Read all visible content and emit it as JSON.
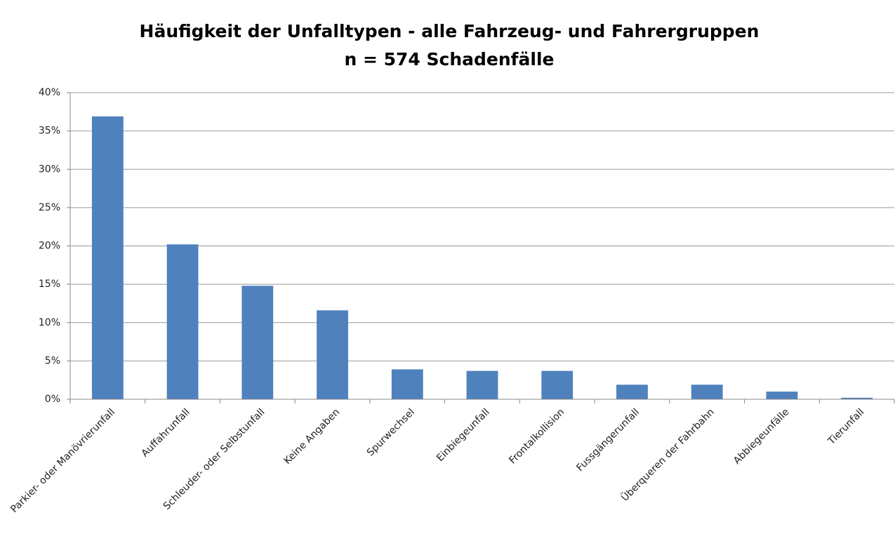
{
  "chart_data": {
    "type": "bar",
    "title": "Häufigkeit der Unfalltypen - alle Fahrzeug- und Fahrergruppen",
    "subtitle": "n = 574 Schadenfälle",
    "categories": [
      "Parkier- oder Manövrierunfall",
      "Auffahrunfall",
      "Schleuder- oder Selbstunfall",
      "Keine Angaben",
      "Spurwechsel",
      "Einbiegeunfall",
      "Frontalkollision",
      "Fussgängerunfall",
      "Überqueren der Fahrbahn",
      "Abbiegeunfälle",
      "Tierunfall"
    ],
    "values": [
      36.9,
      20.2,
      14.8,
      11.6,
      3.9,
      3.7,
      3.7,
      1.9,
      1.9,
      1.0,
      0.2
    ],
    "color": "#4f81bd",
    "ylim": [
      0,
      40
    ],
    "yticks": [
      {
        "value": 0,
        "label": "0%"
      },
      {
        "value": 5,
        "label": "5%"
      },
      {
        "value": 10,
        "label": "10%"
      },
      {
        "value": 15,
        "label": "15%"
      },
      {
        "value": 20,
        "label": "20%"
      },
      {
        "value": 25,
        "label": "25%"
      },
      {
        "value": 30,
        "label": "30%"
      },
      {
        "value": 35,
        "label": "35%"
      },
      {
        "value": 40,
        "label": "40%"
      }
    ],
    "grid": true
  }
}
